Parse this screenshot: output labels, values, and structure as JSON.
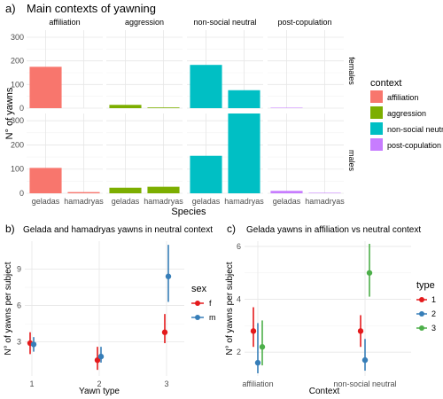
{
  "panel_a": {
    "tag": "a)",
    "title": "Main contexts of yawning",
    "strip_labels": [
      "affiliation",
      "aggression",
      "non-social neutral",
      "post-copulation"
    ],
    "row_labels": [
      "females",
      "males"
    ],
    "y_title": "N° of yawns",
    "x_title": "Species",
    "legend_title": "context",
    "legend_items": [
      "affiliation",
      "aggression",
      "non-social neutral",
      "post-copulation"
    ],
    "colors": {
      "affiliation": "#f8766d",
      "aggression": "#7cae00",
      "non-social neutral": "#00bfc4",
      "post-copulation": "#c77cff"
    }
  },
  "panel_b": {
    "tag": "b)",
    "title": "Gelada and hamadryas yawns in neutral context",
    "y_title": "N° of yawns per subject",
    "x_title": "Yawn type",
    "legend_title": "sex",
    "legend_items": [
      "f",
      "m"
    ],
    "colors": {
      "f": "#e41a1c",
      "m": "#377eb8"
    }
  },
  "panel_c": {
    "tag": "c)",
    "title": "Gelada yawns in affiliation vs neutral context",
    "y_title": "N° of yawns per subject",
    "x_title": "Context",
    "legend_title": "type",
    "legend_items": [
      "1",
      "2",
      "3"
    ],
    "colors": {
      "1": "#e41a1c",
      "2": "#377eb8",
      "3": "#4daf4a"
    }
  },
  "chart_data": [
    {
      "type": "bar",
      "title": "Main contexts of yawning",
      "xlabel": "Species",
      "ylabel": "N° of yawns",
      "categories": [
        "geladas",
        "hamadryas"
      ],
      "facets_columns": [
        "affiliation",
        "aggression",
        "non-social neutral",
        "post-copulation"
      ],
      "facets_rows": [
        "females",
        "males"
      ],
      "ylim": [
        0,
        330
      ],
      "yticks": [
        0,
        100,
        200,
        300
      ],
      "series": [
        {
          "row": "females",
          "context": "affiliation",
          "values": [
            175,
            0
          ]
        },
        {
          "row": "females",
          "context": "aggression",
          "values": [
            14,
            3
          ]
        },
        {
          "row": "females",
          "context": "non-social neutral",
          "values": [
            183,
            76
          ]
        },
        {
          "row": "females",
          "context": "post-copulation",
          "values": [
            2,
            0
          ]
        },
        {
          "row": "males",
          "context": "affiliation",
          "values": [
            105,
            5
          ]
        },
        {
          "row": "males",
          "context": "aggression",
          "values": [
            23,
            27
          ]
        },
        {
          "row": "males",
          "context": "non-social neutral",
          "values": [
            155,
            330
          ]
        },
        {
          "row": "males",
          "context": "post-copulation",
          "values": [
            10,
            2
          ]
        }
      ]
    },
    {
      "type": "scatter",
      "title": "Gelada and hamadryas yawns in neutral context",
      "xlabel": "Yawn type",
      "ylabel": "N° of yawns per subject",
      "categories": [
        "1",
        "2",
        "3"
      ],
      "ylim": [
        0.2,
        11.3
      ],
      "yticks": [
        3,
        6,
        9
      ],
      "series": [
        {
          "name": "f",
          "values": [
            2.9,
            1.5,
            3.8
          ],
          "lower": [
            2.0,
            0.7,
            2.9
          ],
          "upper": [
            3.8,
            2.6,
            5.3
          ]
        },
        {
          "name": "m",
          "values": [
            2.8,
            1.8,
            8.4
          ],
          "lower": [
            2.2,
            1.3,
            6.3
          ],
          "upper": [
            3.4,
            2.6,
            11.0
          ]
        }
      ]
    },
    {
      "type": "scatter",
      "title": "Gelada yawns in affiliation vs neutral context",
      "xlabel": "Context",
      "ylabel": "N° of yawns per subject",
      "categories": [
        "affiliation",
        "non-social neutral"
      ],
      "ylim": [
        1.1,
        6.2
      ],
      "yticks": [
        2,
        4,
        6
      ],
      "series": [
        {
          "name": "1",
          "values": [
            2.8,
            2.8
          ],
          "lower": [
            2.2,
            2.2
          ],
          "upper": [
            3.7,
            3.4
          ]
        },
        {
          "name": "2",
          "values": [
            1.6,
            1.7
          ],
          "lower": [
            1.2,
            1.3
          ],
          "upper": [
            3.1,
            2.5
          ]
        },
        {
          "name": "3",
          "values": [
            2.2,
            5.0
          ],
          "lower": [
            1.5,
            4.1
          ],
          "upper": [
            3.2,
            6.1
          ]
        }
      ]
    }
  ]
}
